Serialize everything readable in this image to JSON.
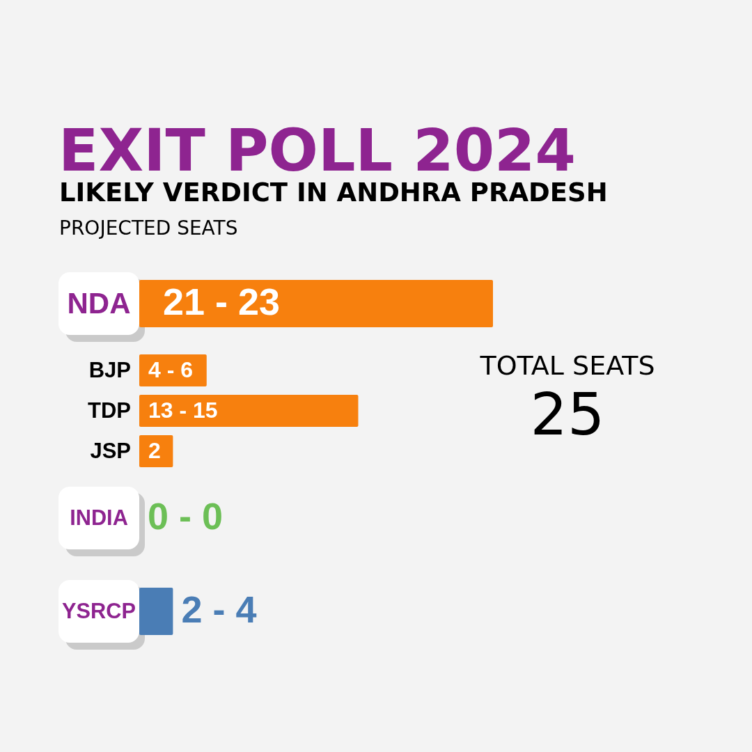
{
  "chart_data": {
    "type": "bar",
    "orientation": "horizontal",
    "title": "EXIT POLL 2024",
    "subtitle": "LIKELY VERDICT IN ANDHRA PRADESH",
    "xlabel": "PROJECTED SEATS",
    "categories": [
      "NDA",
      "BJP",
      "TDP",
      "JSP",
      "INDIA",
      "YSRCP"
    ],
    "series": [
      {
        "colors": [
          "#f7800e",
          null,
          null,
          null,
          "#6cbf56",
          "#4a7db5"
        ],
        "values": [
          21,
          null,
          null,
          null,
          0,
          2
        ],
        "value_labels": [
          "21 - 23",
          null,
          null,
          null,
          "0 - 0",
          "2 - 4"
        ]
      },
      {
        "color": "#f7800e",
        "values": [
          null,
          4,
          13,
          2,
          null,
          null
        ],
        "value_labels": [
          null,
          "4 - 6",
          "13 - 15",
          "2",
          null,
          null
        ]
      }
    ],
    "annotations": [
      "TOTAL SEATS",
      "25"
    ]
  }
}
